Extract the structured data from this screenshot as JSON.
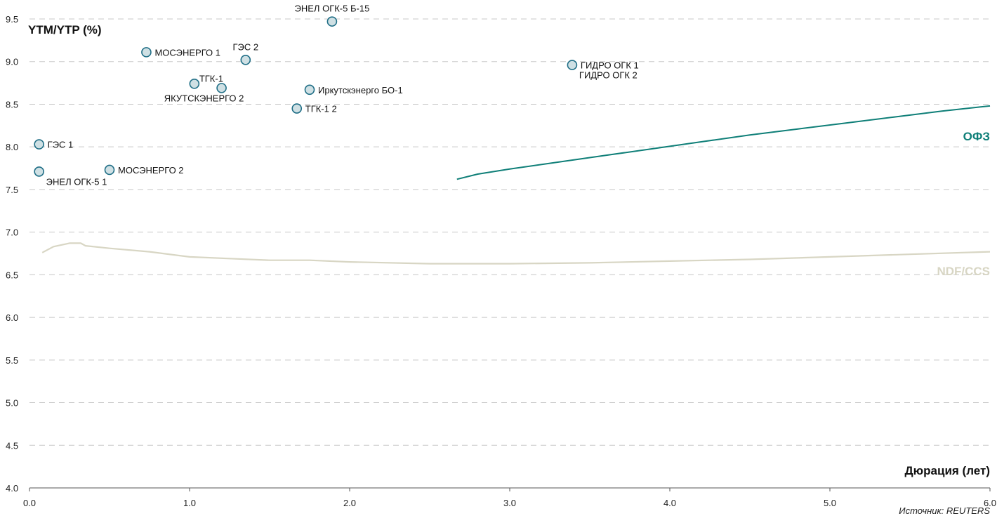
{
  "chart_data": {
    "type": "scatter",
    "ylabel": "YTM/YTP (%)",
    "xlabel": "Дюрация (лет)",
    "source": "Источник: REUTERS",
    "xlim": [
      0,
      6
    ],
    "ylim": [
      4.0,
      9.5
    ],
    "x_ticks": [
      "0.0",
      "1.0",
      "2.0",
      "3.0",
      "4.0",
      "5.0",
      "6.0"
    ],
    "y_ticks": [
      "4.0",
      "4.5",
      "5.0",
      "5.5",
      "6.0",
      "6.5",
      "7.0",
      "7.5",
      "8.0",
      "8.5",
      "9.0",
      "9.5"
    ],
    "grid": true,
    "points": [
      {
        "label": "ЭНЕЛ ОГК-5 Б-15",
        "x": 1.89,
        "y": 9.47,
        "pos": "above"
      },
      {
        "label": "ГЭС 2",
        "x": 1.35,
        "y": 9.02,
        "pos": "above"
      },
      {
        "label": "МОСЭНЕРГО 1",
        "x": 0.73,
        "y": 9.11,
        "pos": "right"
      },
      {
        "label": "ГИДРО ОГК 1",
        "x": 3.39,
        "y": 8.96,
        "pos": "right"
      },
      {
        "label": "ГИДРО ОГК 2",
        "x": 3.39,
        "y": 8.96,
        "pos": "below-right"
      },
      {
        "label": "ТГК-1",
        "x": 1.03,
        "y": 8.74,
        "pos": "upper-right"
      },
      {
        "label": "ЯКУТСКЭНЕРГО 2",
        "x": 1.2,
        "y": 8.69,
        "pos": "below"
      },
      {
        "label": "Иркутскэнерго БО-1",
        "x": 1.75,
        "y": 8.67,
        "pos": "right"
      },
      {
        "label": "ТГК-1 2",
        "x": 1.67,
        "y": 8.45,
        "pos": "right"
      },
      {
        "label": "ГЭС 1",
        "x": 0.06,
        "y": 8.03,
        "pos": "right"
      },
      {
        "label": "ЭНЕЛ ОГК-5 1",
        "x": 0.06,
        "y": 7.71,
        "pos": "below-right"
      },
      {
        "label": "МОСЭНЕРГО 2",
        "x": 0.5,
        "y": 7.73,
        "pos": "right"
      }
    ],
    "series": [
      {
        "name": "ОФЗ",
        "color": "#0f7f78",
        "x": [
          2.67,
          2.8,
          3.0,
          3.3,
          3.6,
          3.9,
          4.2,
          4.5,
          4.8,
          5.1,
          5.4,
          5.7,
          6.0
        ],
        "y": [
          7.62,
          7.68,
          7.74,
          7.82,
          7.9,
          7.98,
          8.06,
          8.14,
          8.21,
          8.28,
          8.35,
          8.42,
          8.48
        ]
      },
      {
        "name": "NDF/CCS",
        "color": "#d8d6c4",
        "x": [
          0.08,
          0.15,
          0.25,
          0.32,
          0.35,
          0.5,
          0.75,
          1.0,
          1.25,
          1.5,
          1.75,
          2.0,
          2.5,
          3.0,
          3.5,
          4.0,
          4.5,
          5.0,
          5.5,
          6.0
        ],
        "y": [
          6.76,
          6.83,
          6.87,
          6.87,
          6.84,
          6.81,
          6.77,
          6.71,
          6.69,
          6.67,
          6.67,
          6.65,
          6.63,
          6.63,
          6.64,
          6.66,
          6.68,
          6.71,
          6.74,
          6.77
        ]
      }
    ]
  }
}
